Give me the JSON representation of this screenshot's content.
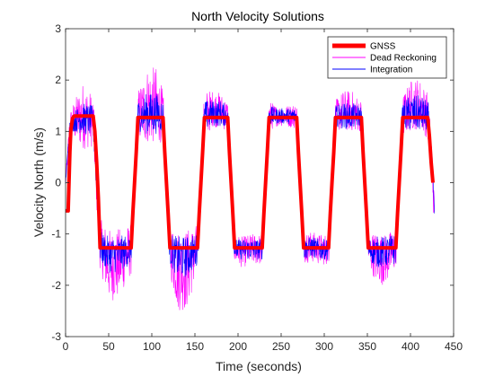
{
  "chart_data": {
    "type": "line",
    "title": "North Velocity Solutions",
    "xlabel": "Time (seconds)",
    "ylabel": "Velocity North (m/s)",
    "xlim": [
      0,
      450
    ],
    "ylim": [
      -3,
      3
    ],
    "xticks": [
      0,
      50,
      100,
      150,
      200,
      250,
      300,
      350,
      400,
      450
    ],
    "yticks": [
      -3,
      -2,
      -1,
      0,
      1,
      2,
      3
    ],
    "grid": false,
    "legend_position": "top-right",
    "series": [
      {
        "name": "GNSS",
        "color": "#ff0000",
        "x": [
          0,
          1,
          3,
          4,
          5,
          6,
          8,
          10,
          32,
          34,
          36,
          38,
          40,
          76,
          78,
          80,
          82,
          84,
          113,
          115,
          117,
          119,
          121,
          153,
          155,
          157,
          159,
          161,
          188,
          190,
          192,
          194,
          196,
          228,
          230,
          232,
          234,
          236,
          268,
          270,
          272,
          274,
          276,
          305,
          307,
          309,
          311,
          313,
          343,
          345,
          347,
          349,
          351,
          383,
          385,
          387,
          389,
          391,
          420,
          422,
          424,
          426
        ],
        "y": [
          -0.55,
          -0.55,
          -0.55,
          0,
          0.6,
          1.0,
          1.25,
          1.3,
          1.3,
          1.0,
          0.4,
          -0.3,
          -1.27,
          -1.27,
          -0.6,
          0,
          0.6,
          1.27,
          1.27,
          0.6,
          0,
          -0.6,
          -1.27,
          -1.27,
          -0.6,
          0,
          0.6,
          1.27,
          1.27,
          0.6,
          0,
          -0.6,
          -1.27,
          -1.27,
          -0.6,
          0,
          0.6,
          1.27,
          1.27,
          0.6,
          0,
          -0.6,
          -1.27,
          -1.27,
          -0.6,
          0,
          0.6,
          1.27,
          1.27,
          0.6,
          0,
          -0.6,
          -1.27,
          -1.27,
          -0.6,
          0,
          0.6,
          1.27,
          1.27,
          0.9,
          0.4,
          0
        ]
      },
      {
        "name": "Dead Reckoning",
        "color": "#ff00ff",
        "x": [
          0,
          5,
          10,
          20,
          32,
          40,
          50,
          60,
          76,
          84,
          95,
          105,
          113,
          121,
          130,
          140,
          153,
          161,
          170,
          180,
          188,
          196,
          205,
          215,
          228,
          236,
          245,
          255,
          268,
          276,
          285,
          295,
          305,
          313,
          322,
          332,
          343,
          351,
          360,
          370,
          383,
          391,
          400,
          410,
          420,
          425,
          428
        ],
        "y": [
          0,
          1.1,
          1.2,
          1.3,
          1.2,
          -1.2,
          -1.6,
          -1.6,
          -1.3,
          1.3,
          1.5,
          1.5,
          1.3,
          -1.3,
          -1.7,
          -1.7,
          -1.3,
          1.3,
          1.45,
          1.4,
          1.3,
          -1.3,
          -1.35,
          -1.3,
          -1.3,
          1.3,
          1.3,
          1.3,
          1.3,
          -1.3,
          -1.25,
          -1.3,
          -1.3,
          1.3,
          1.4,
          1.4,
          1.3,
          -1.3,
          -1.45,
          -1.5,
          -1.3,
          1.3,
          1.5,
          1.55,
          1.3,
          0.4,
          -0.8
        ],
        "amplitude": [
          0.1,
          0.3,
          0.4,
          0.65,
          0.5,
          0.5,
          0.7,
          0.7,
          0.5,
          0.5,
          0.75,
          0.75,
          0.5,
          0.5,
          0.8,
          0.8,
          0.5,
          0.5,
          0.35,
          0.35,
          0.3,
          0.3,
          0.3,
          0.3,
          0.3,
          0.3,
          0.2,
          0.2,
          0.25,
          0.3,
          0.3,
          0.3,
          0.3,
          0.3,
          0.4,
          0.4,
          0.3,
          0.3,
          0.5,
          0.5,
          0.4,
          0.4,
          0.5,
          0.5,
          0.45,
          0.4,
          0.3
        ]
      },
      {
        "name": "Integration",
        "color": "#0000ff",
        "x": [
          0,
          5,
          10,
          20,
          32,
          40,
          50,
          60,
          76,
          84,
          95,
          105,
          113,
          121,
          130,
          140,
          153,
          161,
          170,
          180,
          188,
          196,
          205,
          215,
          228,
          236,
          245,
          255,
          268,
          276,
          285,
          295,
          305,
          313,
          322,
          332,
          343,
          351,
          360,
          370,
          383,
          391,
          400,
          410,
          420,
          425,
          428
        ],
        "y": [
          0,
          1.1,
          1.2,
          1.25,
          1.2,
          -1.25,
          -1.4,
          -1.4,
          -1.3,
          1.3,
          1.35,
          1.35,
          1.3,
          -1.3,
          -1.45,
          -1.45,
          -1.3,
          1.3,
          1.35,
          1.35,
          1.3,
          -1.3,
          -1.3,
          -1.3,
          -1.3,
          1.3,
          1.3,
          1.3,
          1.3,
          -1.3,
          -1.25,
          -1.3,
          -1.3,
          1.3,
          1.3,
          1.3,
          1.3,
          -1.3,
          -1.35,
          -1.35,
          -1.3,
          1.3,
          1.35,
          1.35,
          1.3,
          0.4,
          -0.8
        ],
        "amplitude": [
          0.05,
          0.15,
          0.2,
          0.3,
          0.3,
          0.3,
          0.35,
          0.35,
          0.3,
          0.3,
          0.4,
          0.4,
          0.3,
          0.3,
          0.4,
          0.4,
          0.3,
          0.3,
          0.25,
          0.25,
          0.2,
          0.2,
          0.2,
          0.2,
          0.2,
          0.2,
          0.15,
          0.15,
          0.15,
          0.2,
          0.2,
          0.2,
          0.2,
          0.2,
          0.25,
          0.25,
          0.2,
          0.2,
          0.3,
          0.3,
          0.3,
          0.3,
          0.35,
          0.35,
          0.3,
          0.25,
          0.2
        ]
      }
    ]
  }
}
